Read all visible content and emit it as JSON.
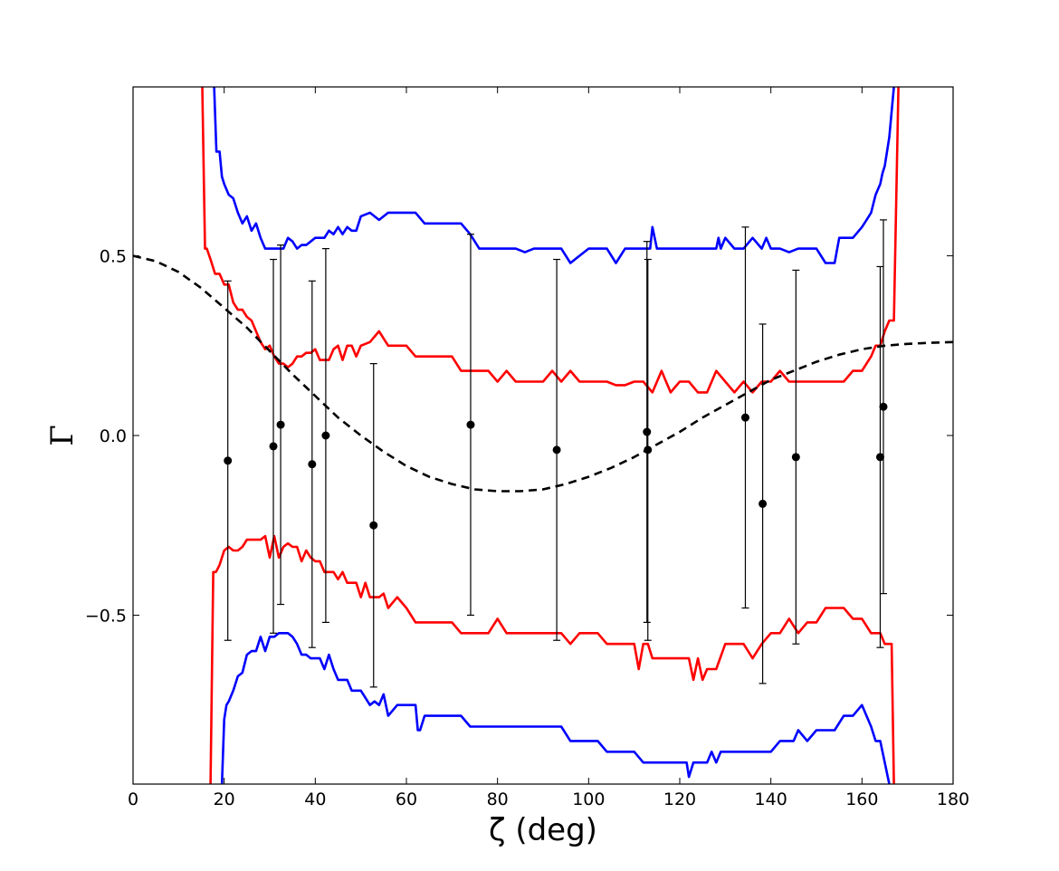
{
  "chart_data": {
    "type": "line",
    "title": "",
    "xlabel": "ζ (deg)",
    "ylabel": "Γ",
    "xlim": [
      0,
      180
    ],
    "ylim": [
      -0.97,
      0.97
    ],
    "xticks": [
      0,
      20,
      40,
      60,
      80,
      100,
      120,
      140,
      160,
      180
    ],
    "yticks": [
      -0.5,
      0.0,
      0.5
    ],
    "ytick_labels": [
      "−0.5",
      "0.0",
      "0.5"
    ],
    "grid": false,
    "legend": "none",
    "colors": {
      "blue": "#0000ff",
      "red": "#ff0000",
      "model": "#000000",
      "points": "#000000"
    },
    "series": [
      {
        "style": "blue-solid",
        "x": [
          17.8,
          18.3,
          19,
          19.5,
          20,
          21,
          22,
          23,
          24,
          25,
          26,
          27,
          28,
          29,
          30,
          31,
          32,
          33,
          34,
          35,
          36,
          37,
          38,
          39,
          40,
          41,
          42,
          43,
          44,
          45,
          46,
          47,
          48,
          49,
          50,
          52,
          54,
          56,
          58,
          60,
          62,
          64,
          66,
          68,
          70,
          72,
          74,
          76,
          78,
          80,
          82,
          84,
          86,
          88,
          90,
          92,
          94,
          96,
          98,
          100,
          102,
          104,
          106,
          108,
          110,
          112,
          113.5,
          114,
          115,
          116,
          118,
          120,
          122,
          124,
          126,
          128,
          128.5,
          129,
          130,
          132,
          134,
          136,
          138,
          139,
          140,
          142,
          144,
          146,
          148,
          150,
          152,
          154,
          155,
          156,
          158,
          160,
          161,
          162,
          163,
          164,
          164.5,
          165,
          166,
          167
        ],
        "y": [
          0.97,
          0.79,
          0.79,
          0.72,
          0.7,
          0.67,
          0.66,
          0.62,
          0.59,
          0.61,
          0.57,
          0.59,
          0.55,
          0.52,
          0.52,
          0.52,
          0.52,
          0.52,
          0.55,
          0.54,
          0.52,
          0.53,
          0.53,
          0.54,
          0.55,
          0.55,
          0.55,
          0.57,
          0.56,
          0.58,
          0.56,
          0.58,
          0.57,
          0.57,
          0.61,
          0.62,
          0.6,
          0.62,
          0.62,
          0.62,
          0.62,
          0.59,
          0.59,
          0.59,
          0.59,
          0.59,
          0.56,
          0.52,
          0.52,
          0.52,
          0.52,
          0.52,
          0.51,
          0.52,
          0.52,
          0.52,
          0.52,
          0.48,
          0.5,
          0.52,
          0.52,
          0.52,
          0.48,
          0.52,
          0.52,
          0.52,
          0.52,
          0.58,
          0.52,
          0.52,
          0.52,
          0.52,
          0.52,
          0.52,
          0.52,
          0.52,
          0.55,
          0.52,
          0.55,
          0.52,
          0.52,
          0.55,
          0.52,
          0.55,
          0.52,
          0.52,
          0.51,
          0.52,
          0.52,
          0.52,
          0.48,
          0.48,
          0.55,
          0.55,
          0.55,
          0.58,
          0.6,
          0.62,
          0.67,
          0.7,
          0.73,
          0.75,
          0.83,
          0.97
        ]
      },
      {
        "style": "blue-solid",
        "x": [
          19.5,
          20,
          20.5,
          21,
          22,
          23,
          24,
          25,
          26,
          27,
          28,
          29,
          30,
          31,
          32,
          33,
          34,
          35,
          36,
          37,
          38,
          39,
          40,
          41,
          42,
          43,
          44,
          45,
          46,
          47,
          48,
          49,
          50,
          51,
          52,
          53,
          54,
          55,
          56,
          58,
          60,
          62,
          62.5,
          63,
          64,
          66,
          68,
          70,
          72,
          74,
          76,
          78,
          80,
          82,
          84,
          86,
          88,
          90,
          92,
          94,
          96,
          98,
          100,
          102,
          104,
          106,
          108,
          110,
          112,
          114,
          116,
          118,
          120,
          121.5,
          122,
          123,
          124,
          126,
          127,
          128,
          129,
          130,
          132,
          134,
          136,
          138,
          140,
          142,
          144,
          145,
          146,
          148,
          150,
          152,
          154,
          156,
          158,
          160,
          162,
          163,
          164,
          165,
          166
        ],
        "y": [
          -0.97,
          -0.79,
          -0.75,
          -0.74,
          -0.71,
          -0.67,
          -0.66,
          -0.61,
          -0.6,
          -0.6,
          -0.56,
          -0.6,
          -0.56,
          -0.56,
          -0.55,
          -0.55,
          -0.55,
          -0.56,
          -0.58,
          -0.61,
          -0.61,
          -0.62,
          -0.62,
          -0.62,
          -0.65,
          -0.61,
          -0.65,
          -0.68,
          -0.68,
          -0.68,
          -0.71,
          -0.71,
          -0.71,
          -0.73,
          -0.75,
          -0.74,
          -0.75,
          -0.72,
          -0.78,
          -0.75,
          -0.75,
          -0.75,
          -0.82,
          -0.82,
          -0.78,
          -0.78,
          -0.78,
          -0.78,
          -0.78,
          -0.81,
          -0.81,
          -0.81,
          -0.81,
          -0.81,
          -0.81,
          -0.81,
          -0.81,
          -0.81,
          -0.81,
          -0.81,
          -0.85,
          -0.85,
          -0.85,
          -0.85,
          -0.88,
          -0.88,
          -0.88,
          -0.88,
          -0.91,
          -0.91,
          -0.91,
          -0.91,
          -0.91,
          -0.91,
          -0.95,
          -0.91,
          -0.91,
          -0.91,
          -0.88,
          -0.91,
          -0.88,
          -0.88,
          -0.88,
          -0.88,
          -0.88,
          -0.88,
          -0.88,
          -0.85,
          -0.85,
          -0.85,
          -0.82,
          -0.85,
          -0.82,
          -0.82,
          -0.82,
          -0.78,
          -0.78,
          -0.75,
          -0.81,
          -0.85,
          -0.85,
          -0.91,
          -0.97
        ]
      },
      {
        "style": "red-solid",
        "x": [
          15.2,
          15.8,
          16.2,
          17,
          18,
          19,
          20,
          21,
          22,
          23,
          24,
          25,
          26,
          27,
          28,
          29,
          30,
          31,
          32,
          33,
          34,
          35,
          36,
          37,
          38,
          39,
          40,
          41,
          42,
          43,
          44,
          45,
          46,
          47,
          48,
          49,
          50,
          52,
          54,
          56,
          58,
          60,
          62,
          64,
          66,
          68,
          70,
          72,
          74,
          76,
          78,
          80,
          82,
          84,
          86,
          88,
          90,
          92,
          94,
          96,
          98,
          100,
          102,
          104,
          106,
          108,
          110,
          112,
          114,
          116,
          118,
          120,
          122,
          124,
          126,
          128,
          130,
          132,
          134,
          136,
          138,
          140,
          142,
          144,
          146,
          148,
          150,
          152,
          154,
          156,
          158,
          160,
          162,
          163,
          164,
          165,
          166,
          167,
          168
        ],
        "y": [
          0.97,
          0.52,
          0.52,
          0.49,
          0.45,
          0.45,
          0.42,
          0.42,
          0.37,
          0.35,
          0.35,
          0.33,
          0.32,
          0.29,
          0.26,
          0.24,
          0.25,
          0.22,
          0.2,
          0.2,
          0.19,
          0.2,
          0.22,
          0.22,
          0.23,
          0.23,
          0.24,
          0.21,
          0.21,
          0.21,
          0.24,
          0.25,
          0.21,
          0.25,
          0.25,
          0.22,
          0.25,
          0.26,
          0.29,
          0.25,
          0.25,
          0.25,
          0.22,
          0.22,
          0.22,
          0.22,
          0.22,
          0.18,
          0.18,
          0.18,
          0.18,
          0.15,
          0.18,
          0.15,
          0.15,
          0.15,
          0.15,
          0.18,
          0.15,
          0.18,
          0.15,
          0.15,
          0.15,
          0.15,
          0.14,
          0.14,
          0.15,
          0.15,
          0.12,
          0.18,
          0.12,
          0.15,
          0.15,
          0.12,
          0.12,
          0.18,
          0.15,
          0.12,
          0.15,
          0.12,
          0.15,
          0.15,
          0.18,
          0.15,
          0.15,
          0.15,
          0.15,
          0.15,
          0.15,
          0.15,
          0.18,
          0.18,
          0.22,
          0.25,
          0.25,
          0.29,
          0.32,
          0.32,
          0.97
        ]
      },
      {
        "style": "red-solid",
        "x": [
          17,
          17.6,
          18.2,
          19,
          20,
          21,
          22,
          23,
          24,
          25,
          26,
          27,
          28,
          29,
          30,
          31,
          32,
          33,
          34,
          35,
          36,
          37,
          38,
          39,
          40,
          41,
          42,
          43,
          44,
          45,
          46,
          47,
          48,
          49,
          50,
          51,
          52,
          53,
          54,
          55,
          56,
          58,
          60,
          62,
          64,
          66,
          68,
          70,
          72,
          74,
          76,
          78,
          80,
          82,
          84,
          86,
          88,
          90,
          92,
          94,
          96,
          98,
          100,
          102,
          104,
          106,
          108,
          110,
          111,
          112,
          113,
          114,
          116,
          118,
          120,
          122,
          123,
          124,
          125,
          126,
          127,
          128,
          130,
          132,
          134,
          136,
          138,
          140,
          142,
          144,
          146,
          148,
          150,
          152,
          154,
          156,
          158,
          160,
          162,
          164,
          165,
          166,
          166.5,
          167
        ],
        "y": [
          -0.97,
          -0.38,
          -0.38,
          -0.36,
          -0.32,
          -0.31,
          -0.32,
          -0.32,
          -0.31,
          -0.29,
          -0.29,
          -0.29,
          -0.29,
          -0.28,
          -0.34,
          -0.28,
          -0.34,
          -0.31,
          -0.3,
          -0.31,
          -0.31,
          -0.35,
          -0.32,
          -0.34,
          -0.35,
          -0.35,
          -0.38,
          -0.38,
          -0.38,
          -0.4,
          -0.38,
          -0.41,
          -0.41,
          -0.41,
          -0.45,
          -0.41,
          -0.45,
          -0.45,
          -0.45,
          -0.44,
          -0.48,
          -0.45,
          -0.48,
          -0.52,
          -0.52,
          -0.52,
          -0.52,
          -0.52,
          -0.55,
          -0.55,
          -0.55,
          -0.55,
          -0.51,
          -0.55,
          -0.55,
          -0.55,
          -0.55,
          -0.55,
          -0.55,
          -0.55,
          -0.58,
          -0.55,
          -0.55,
          -0.55,
          -0.58,
          -0.58,
          -0.58,
          -0.58,
          -0.65,
          -0.58,
          -0.58,
          -0.62,
          -0.62,
          -0.62,
          -0.62,
          -0.62,
          -0.68,
          -0.62,
          -0.68,
          -0.65,
          -0.65,
          -0.65,
          -0.58,
          -0.58,
          -0.58,
          -0.62,
          -0.58,
          -0.55,
          -0.55,
          -0.51,
          -0.55,
          -0.52,
          -0.52,
          -0.48,
          -0.48,
          -0.48,
          -0.51,
          -0.51,
          -0.55,
          -0.55,
          -0.58,
          -0.58,
          -0.58,
          -0.97
        ]
      },
      {
        "style": "black-dashed",
        "x": [
          0,
          5,
          10,
          15,
          20,
          25,
          30,
          35,
          40,
          45,
          50,
          55,
          60,
          65,
          70,
          75,
          80,
          85,
          90,
          95,
          100,
          105,
          110,
          115,
          120,
          125,
          130,
          135,
          140,
          145,
          150,
          155,
          160,
          165,
          170,
          175,
          180
        ],
        "y": [
          0.5,
          0.485,
          0.455,
          0.41,
          0.355,
          0.3,
          0.235,
          0.17,
          0.11,
          0.05,
          0.0,
          -0.045,
          -0.085,
          -0.115,
          -0.135,
          -0.15,
          -0.155,
          -0.155,
          -0.15,
          -0.135,
          -0.115,
          -0.09,
          -0.06,
          -0.025,
          0.01,
          0.05,
          0.085,
          0.12,
          0.155,
          0.18,
          0.205,
          0.225,
          0.24,
          0.25,
          0.255,
          0.258,
          0.26
        ]
      }
    ],
    "points": [
      {
        "x": 20.8,
        "y": -0.07,
        "lo": -0.57,
        "hi": 0.43
      },
      {
        "x": 30.8,
        "y": -0.03,
        "lo": -0.55,
        "hi": 0.49
      },
      {
        "x": 32.4,
        "y": 0.03,
        "lo": -0.47,
        "hi": 0.53
      },
      {
        "x": 39.3,
        "y": -0.08,
        "lo": -0.59,
        "hi": 0.43
      },
      {
        "x": 42.3,
        "y": 0.0,
        "lo": -0.52,
        "hi": 0.52
      },
      {
        "x": 52.8,
        "y": -0.25,
        "lo": -0.7,
        "hi": 0.2
      },
      {
        "x": 74.1,
        "y": 0.03,
        "lo": -0.5,
        "hi": 0.56
      },
      {
        "x": 93.0,
        "y": -0.04,
        "lo": -0.57,
        "hi": 0.49
      },
      {
        "x": 112.8,
        "y": 0.01,
        "lo": -0.52,
        "hi": 0.54
      },
      {
        "x": 113.0,
        "y": -0.04,
        "lo": -0.57,
        "hi": 0.49
      },
      {
        "x": 134.4,
        "y": 0.05,
        "lo": -0.48,
        "hi": 0.58
      },
      {
        "x": 138.2,
        "y": -0.19,
        "lo": -0.69,
        "hi": 0.31
      },
      {
        "x": 145.5,
        "y": -0.06,
        "lo": -0.58,
        "hi": 0.46
      },
      {
        "x": 164.0,
        "y": -0.06,
        "lo": -0.59,
        "hi": 0.47
      },
      {
        "x": 164.7,
        "y": 0.08,
        "lo": -0.44,
        "hi": 0.6
      }
    ]
  }
}
